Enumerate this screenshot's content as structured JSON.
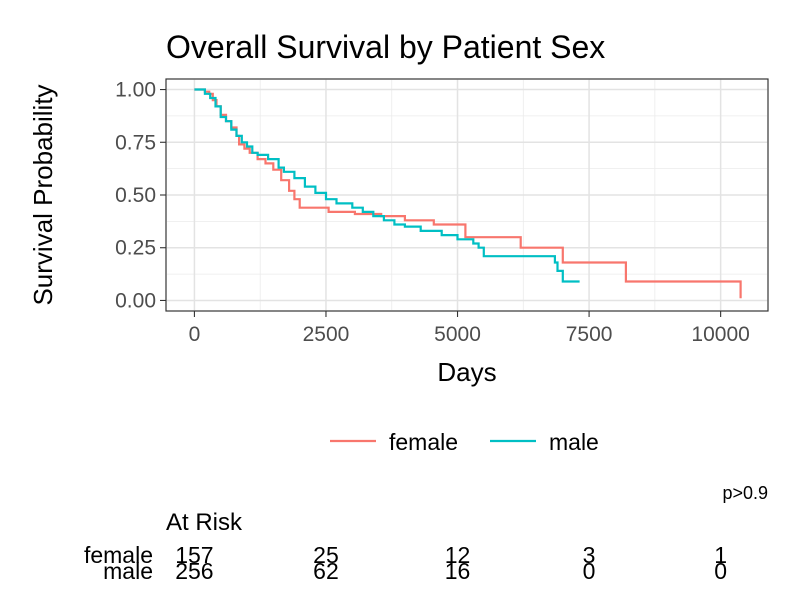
{
  "chart_data": {
    "type": "line",
    "title": "Overall Survival by Patient Sex",
    "xlabel": "Days",
    "ylabel": "Survival Probability",
    "xlim": [
      -540,
      10900
    ],
    "ylim": [
      -0.05,
      1.05
    ],
    "x_ticks": [
      0,
      2500,
      5000,
      7500,
      10000
    ],
    "x_tick_labels": [
      "0",
      "2500",
      "5000",
      "7500",
      "10000"
    ],
    "y_ticks": [
      0,
      0.25,
      0.5,
      0.75,
      1.0
    ],
    "y_tick_labels": [
      "0.00",
      "0.25",
      "0.50",
      "0.75",
      "1.00"
    ],
    "grid": true,
    "legend_position": "bottom",
    "p_value": "p>0.9",
    "series": [
      {
        "name": "female",
        "color": "#F8766D",
        "points": [
          [
            0,
            1.0
          ],
          [
            120,
            1.0
          ],
          [
            200,
            0.99
          ],
          [
            280,
            0.98
          ],
          [
            350,
            0.95
          ],
          [
            420,
            0.92
          ],
          [
            500,
            0.88
          ],
          [
            600,
            0.85
          ],
          [
            700,
            0.82
          ],
          [
            800,
            0.78
          ],
          [
            850,
            0.74
          ],
          [
            950,
            0.72
          ],
          [
            1050,
            0.7
          ],
          [
            1200,
            0.67
          ],
          [
            1350,
            0.65
          ],
          [
            1500,
            0.62
          ],
          [
            1650,
            0.57
          ],
          [
            1800,
            0.52
          ],
          [
            1900,
            0.48
          ],
          [
            2000,
            0.44
          ],
          [
            2500,
            0.44
          ],
          [
            2550,
            0.42
          ],
          [
            3000,
            0.42
          ],
          [
            3050,
            0.41
          ],
          [
            3500,
            0.41
          ],
          [
            3550,
            0.4
          ],
          [
            3950,
            0.4
          ],
          [
            4000,
            0.38
          ],
          [
            4500,
            0.38
          ],
          [
            4550,
            0.36
          ],
          [
            5100,
            0.36
          ],
          [
            5150,
            0.3
          ],
          [
            6150,
            0.3
          ],
          [
            6200,
            0.25
          ],
          [
            6950,
            0.25
          ],
          [
            7000,
            0.18
          ],
          [
            8150,
            0.18
          ],
          [
            8200,
            0.09
          ],
          [
            10350,
            0.09
          ],
          [
            10380,
            0.01
          ]
        ]
      },
      {
        "name": "male",
        "color": "#00BFC4",
        "points": [
          [
            0,
            1.0
          ],
          [
            100,
            1.0
          ],
          [
            200,
            0.98
          ],
          [
            300,
            0.96
          ],
          [
            400,
            0.92
          ],
          [
            500,
            0.87
          ],
          [
            600,
            0.85
          ],
          [
            700,
            0.81
          ],
          [
            800,
            0.78
          ],
          [
            900,
            0.75
          ],
          [
            1000,
            0.73
          ],
          [
            1100,
            0.7
          ],
          [
            1200,
            0.69
          ],
          [
            1400,
            0.67
          ],
          [
            1600,
            0.63
          ],
          [
            1700,
            0.61
          ],
          [
            1900,
            0.58
          ],
          [
            2100,
            0.54
          ],
          [
            2300,
            0.51
          ],
          [
            2500,
            0.48
          ],
          [
            2700,
            0.46
          ],
          [
            3000,
            0.44
          ],
          [
            3200,
            0.42
          ],
          [
            3400,
            0.4
          ],
          [
            3600,
            0.38
          ],
          [
            3800,
            0.36
          ],
          [
            4000,
            0.35
          ],
          [
            4300,
            0.33
          ],
          [
            4700,
            0.31
          ],
          [
            5000,
            0.29
          ],
          [
            5300,
            0.27
          ],
          [
            5400,
            0.25
          ],
          [
            5500,
            0.21
          ],
          [
            6800,
            0.21
          ],
          [
            6850,
            0.18
          ],
          [
            6900,
            0.14
          ],
          [
            6950,
            0.14
          ],
          [
            7000,
            0.09
          ],
          [
            7320,
            0.09
          ]
        ]
      }
    ],
    "risk_table": {
      "title": "At Risk",
      "times": [
        0,
        2500,
        5000,
        7500,
        10000
      ],
      "rows": [
        {
          "name": "female",
          "values": [
            "157",
            "25",
            "12",
            "3",
            "1"
          ]
        },
        {
          "name": "male",
          "values": [
            "256",
            "62",
            "16",
            "0",
            "0"
          ]
        }
      ]
    }
  }
}
